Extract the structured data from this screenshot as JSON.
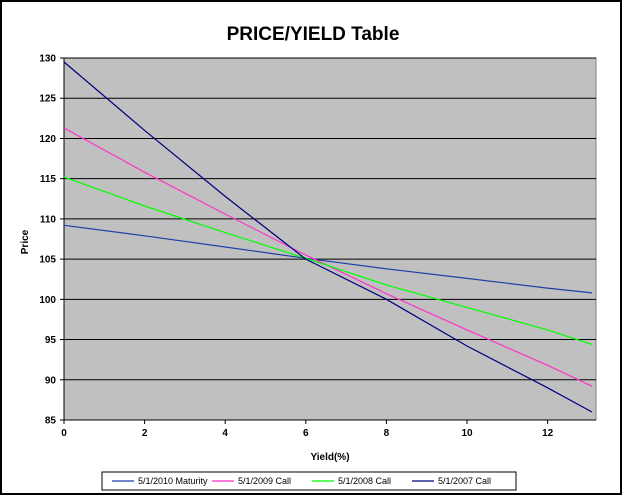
{
  "chart_data": {
    "type": "line",
    "title": "PRICE/YIELD Table",
    "xlabel": "Yield(%)",
    "ylabel": "Price",
    "xlim": [
      0,
      13.2
    ],
    "ylim": [
      85,
      130
    ],
    "xticks": [
      "0",
      "2",
      "4",
      "6",
      "8",
      "10",
      "12"
    ],
    "xtick_values": [
      0,
      2,
      4,
      6,
      8,
      10,
      12
    ],
    "yticks": [
      "85",
      "90",
      "95",
      "100",
      "105",
      "110",
      "115",
      "120",
      "125",
      "130"
    ],
    "ytick_values": [
      85,
      90,
      95,
      100,
      105,
      110,
      115,
      120,
      125,
      130
    ],
    "grid": "horizontal",
    "plot_background": "#c0c0c0",
    "legend_position": "bottom",
    "series": [
      {
        "name": "5/1/2010 Maturity",
        "color": "#1f3fa8",
        "x": [
          0,
          2,
          4,
          6,
          8,
          10,
          12,
          13.1
        ],
        "y": [
          109.2,
          107.9,
          106.5,
          105.1,
          103.8,
          102.6,
          101.4,
          100.8
        ]
      },
      {
        "name": "5/1/2009 Call",
        "color": "#ff33cc",
        "x": [
          0,
          2,
          4,
          6,
          8,
          10,
          12,
          13.1
        ],
        "y": [
          121.3,
          115.8,
          110.6,
          105.5,
          100.7,
          96.2,
          91.8,
          89.2
        ]
      },
      {
        "name": "5/1/2008 Call",
        "color": "#00ff00",
        "x": [
          0,
          2,
          4,
          6,
          8,
          10,
          12,
          13.1
        ],
        "y": [
          115.2,
          111.6,
          108.3,
          105.1,
          101.8,
          99.0,
          96.2,
          94.4
        ]
      },
      {
        "name": "5/1/2007 Call",
        "color": "#000080",
        "x": [
          0,
          2,
          4,
          6,
          8,
          10,
          12,
          13.1
        ],
        "y": [
          129.5,
          121.0,
          112.8,
          105.0,
          100.0,
          94.2,
          89.0,
          86.0
        ]
      }
    ]
  }
}
